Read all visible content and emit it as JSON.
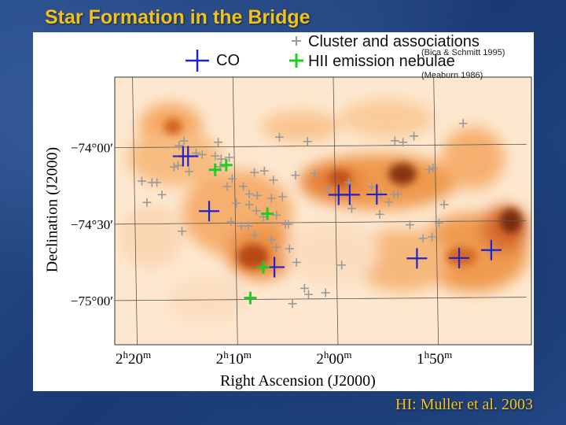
{
  "slide": {
    "title": "Star Formation in the Bridge",
    "credit": "HI: Muller et al. 2003"
  },
  "chart_data": {
    "type": "scatter",
    "title": "",
    "xlabel": "Right Ascension  (J2000)",
    "ylabel": "Declination  (J2000)",
    "x_ticks": [
      {
        "h": 2,
        "m": 20,
        "label_h": "2",
        "label_m": "20"
      },
      {
        "h": 2,
        "m": 10,
        "label_h": "2",
        "label_m": "10"
      },
      {
        "h": 2,
        "m": 0,
        "label_h": "2",
        "label_m": "00"
      },
      {
        "h": 1,
        "m": 50,
        "label_h": "1",
        "label_m": "50"
      }
    ],
    "y_ticks": [
      {
        "dec": -74.0,
        "label": "−74°00′"
      },
      {
        "dec": -74.5,
        "label": "−74°30′"
      },
      {
        "dec": -75.0,
        "label": "−75°00′"
      }
    ],
    "xlim_min_ra": [
      142.0,
      100.5
    ],
    "ylim_dec": [
      -75.3,
      -73.55
    ],
    "legend": [
      {
        "name": "CO",
        "color": "#2222cc"
      },
      {
        "name": "Cluster and associations",
        "note": "(Bica & Schmitt 1995)",
        "color": "#999999"
      },
      {
        "name": "HII emission nebulae",
        "note": "(Meaburn 1986)",
        "color": "#22cc22"
      }
    ],
    "background": "HI column density map (orange colormap)",
    "series": [
      {
        "name": "CO",
        "color": "#2222cc",
        "points": [
          [
            135.2,
            -74.06
          ],
          [
            134.7,
            -74.06
          ],
          [
            132.6,
            -74.42
          ],
          [
            118.6,
            -74.32
          ],
          [
            115.9,
            -74.32
          ],
          [
            119.7,
            -74.32
          ],
          [
            111.9,
            -74.74
          ],
          [
            126.1,
            -74.79
          ],
          [
            107.7,
            -74.74
          ],
          [
            104.5,
            -74.69
          ]
        ]
      },
      {
        "name": "HII emission nebulae",
        "color": "#22cc22",
        "points": [
          [
            132.0,
            -74.15
          ],
          [
            130.9,
            -74.12
          ],
          [
            126.8,
            -74.44
          ],
          [
            127.2,
            -74.79
          ],
          [
            128.5,
            -74.99
          ]
        ]
      },
      {
        "name": "Cluster and associations",
        "color": "#999999",
        "points": [
          [
            122.8,
            -73.97
          ],
          [
            125.6,
            -73.94
          ],
          [
            135.1,
            -73.96
          ],
          [
            135.6,
            -73.99
          ],
          [
            133.9,
            -74.04
          ],
          [
            133.3,
            -74.05
          ],
          [
            132.0,
            -74.06
          ],
          [
            131.4,
            -74.08
          ],
          [
            130.6,
            -74.07
          ],
          [
            135.7,
            -74.12
          ],
          [
            136.1,
            -74.13
          ],
          [
            134.6,
            -74.16
          ],
          [
            131.5,
            -74.13
          ],
          [
            128.1,
            -74.17
          ],
          [
            127.1,
            -74.16
          ],
          [
            124.0,
            -74.19
          ],
          [
            118.7,
            -74.24
          ],
          [
            116.4,
            -74.27
          ],
          [
            115.5,
            -74.32
          ],
          [
            114.2,
            -74.32
          ],
          [
            113.8,
            -74.32
          ],
          [
            139.3,
            -74.22
          ],
          [
            138.3,
            -74.23
          ],
          [
            137.8,
            -74.23
          ],
          [
            137.3,
            -74.31
          ],
          [
            130.8,
            -74.26
          ],
          [
            129.2,
            -74.26
          ],
          [
            128.6,
            -74.31
          ],
          [
            127.8,
            -74.32
          ],
          [
            126.4,
            -74.34
          ],
          [
            125.3,
            -74.33
          ],
          [
            129.9,
            -74.37
          ],
          [
            128.6,
            -74.38
          ],
          [
            127.9,
            -74.42
          ],
          [
            127.2,
            -74.46
          ],
          [
            125.9,
            -74.45
          ],
          [
            125.0,
            -74.51
          ],
          [
            124.7,
            -74.51
          ],
          [
            135.3,
            -74.55
          ],
          [
            129.4,
            -74.52
          ],
          [
            128.7,
            -74.52
          ],
          [
            128.1,
            -74.58
          ],
          [
            126.4,
            -74.61
          ],
          [
            125.9,
            -74.66
          ],
          [
            124.6,
            -74.67
          ],
          [
            123.9,
            -74.76
          ],
          [
            119.4,
            -74.78
          ],
          [
            115.6,
            -74.45
          ],
          [
            114.7,
            -74.37
          ],
          [
            112.6,
            -74.52
          ],
          [
            110.4,
            -74.6
          ],
          [
            111.3,
            -74.61
          ],
          [
            109.7,
            -74.51
          ],
          [
            104.5,
            -74.7
          ],
          [
            113.3,
            -73.98
          ],
          [
            114.1,
            -73.97
          ],
          [
            112.2,
            -73.94
          ],
          [
            110.3,
            -74.15
          ],
          [
            110.7,
            -74.16
          ],
          [
            107.3,
            -73.86
          ],
          [
            120.8,
            -74.28
          ],
          [
            122.1,
            -74.18
          ],
          [
            124.3,
            -75.03
          ],
          [
            122.7,
            -74.97
          ],
          [
            123.1,
            -74.93
          ],
          [
            121.0,
            -74.96
          ],
          [
            138.8,
            -74.36
          ],
          [
            130.3,
            -74.21
          ],
          [
            109.2,
            -74.39
          ],
          [
            131.7,
            -73.97
          ],
          [
            118.4,
            -74.41
          ],
          [
            126.2,
            -74.22
          ],
          [
            130.4,
            -74.49
          ]
        ]
      }
    ]
  }
}
